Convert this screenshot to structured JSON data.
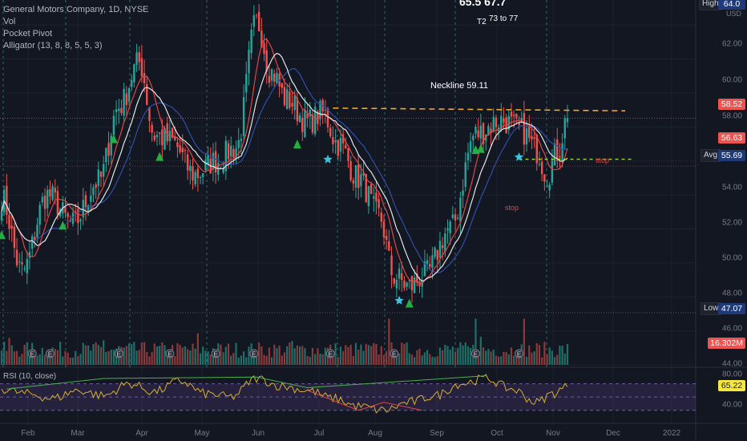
{
  "legend": {
    "title": "General Motors Company, 1D, NYSE",
    "vol": "Vol",
    "pocket": "Pocket Pivot",
    "alligator": "Alligator (13, 8, 8, 5, 5, 3)",
    "rsi": "RSI (10, close)"
  },
  "annotations": {
    "top_prices": "65.5   67.7",
    "t2": "T2",
    "t2_range": "73 to 77",
    "neckline": "Neckline 59.11",
    "stop1": "stop",
    "stop2": "stop"
  },
  "y_axis": [
    "64.00",
    "62.00",
    "60.00",
    "58.00",
    "56.00",
    "54.00",
    "52.00",
    "50.00",
    "48.00",
    "46.00",
    "44.00"
  ],
  "rsi_axis": [
    "80.00",
    "40.00"
  ],
  "x_axis": [
    "Feb",
    "Mar",
    "Apr",
    "May",
    "Jun",
    "Jul",
    "Aug",
    "Sep",
    "Oct",
    "Nov",
    "Dec",
    "2022"
  ],
  "price_tags": {
    "high_label": "High",
    "high": "64.0",
    "close": "58.52",
    "level2": "56.63",
    "avg_label": "Avg",
    "avg": "55.69",
    "low_label": "Low",
    "low": "47.07",
    "volume": "16.302M",
    "rsi": "65.22",
    "currency": "USD"
  },
  "colors": {
    "background": "#131722",
    "up": "#26a69a",
    "down": "#ef5350",
    "vol_up": "#1f6f68",
    "vol_down": "#8a3a3a",
    "sma_white": "#e6e6e6",
    "sma_red": "#e04646",
    "sma_blue": "#2f4fa8",
    "neckline": "#f5a623",
    "support": "#9fd63b",
    "rsi_line": "#d6b02b",
    "marker_green": "#22b043",
    "marker_star": "#36c6e0"
  },
  "chart_data": {
    "type": "candlestick",
    "symbol": "General Motors Company, 1D, NYSE",
    "ylim": [
      44,
      65
    ],
    "rsi_ylim": [
      20,
      90
    ],
    "neckline": 59.11,
    "support_level": 56.1,
    "anchors": {
      "x_index": [
        0,
        8,
        18,
        28,
        38,
        46,
        54,
        60,
        66,
        76,
        84,
        92,
        100,
        106,
        112,
        120,
        126,
        132,
        140,
        148,
        154,
        160,
        166,
        176,
        186,
        196,
        204,
        210,
        214,
        218,
        222
      ],
      "price": [
        53.8,
        49.5,
        54.0,
        52.3,
        54.8,
        59.2,
        61.8,
        57.5,
        57.2,
        55.2,
        56.0,
        56.8,
        64.2,
        61.2,
        59.6,
        58.3,
        58.8,
        57.0,
        55.0,
        52.8,
        49.2,
        48.6,
        49.3,
        52.0,
        57.6,
        58.4,
        57.8,
        56.6,
        55.2,
        56.5,
        58.52
      ]
    },
    "rsi_anchors": {
      "x_index": [
        0,
        10,
        20,
        30,
        40,
        50,
        60,
        70,
        80,
        90,
        100,
        110,
        120,
        130,
        140,
        150,
        160,
        170,
        180,
        190,
        200,
        210,
        216,
        222
      ],
      "value": [
        62,
        55,
        48,
        60,
        52,
        70,
        58,
        74,
        55,
        50,
        78,
        66,
        60,
        48,
        36,
        30,
        42,
        52,
        70,
        78,
        62,
        42,
        55,
        65.22
      ]
    },
    "pocket_pivot_idx": [
      0,
      24,
      44,
      62,
      116,
      160,
      186,
      188
    ],
    "star_idx": [
      128,
      156,
      203
    ],
    "earnings_idx": [
      12,
      19,
      46,
      66,
      84,
      99,
      129,
      154,
      186,
      203
    ],
    "series": [
      "price",
      "sma_white",
      "sma_red",
      "sma_blue",
      "volume",
      "rsi"
    ]
  }
}
